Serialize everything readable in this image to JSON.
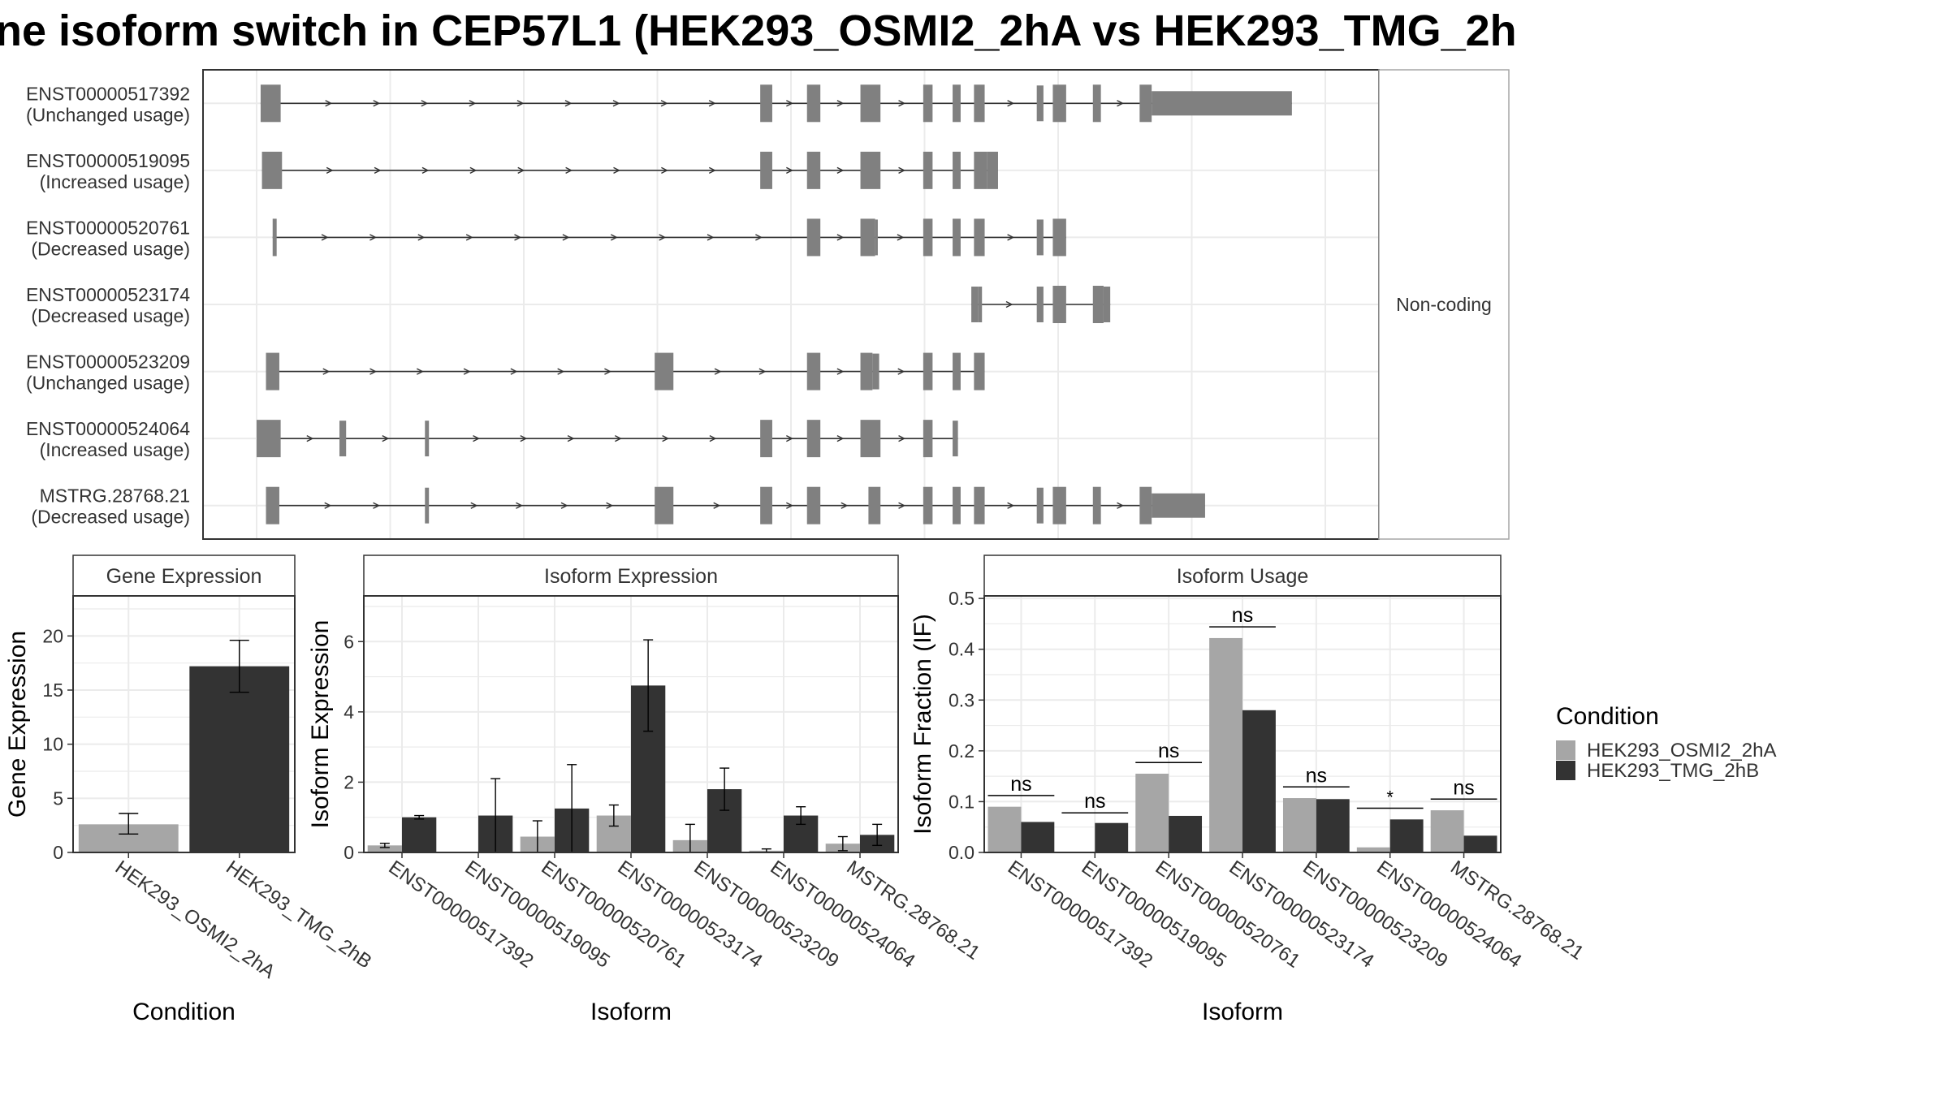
{
  "title": "ne isoform switch in CEP57L1 (HEK293_OSMI2_2hA vs HEK293_TMG_2h",
  "colors": {
    "osmi": "#a6a6a6",
    "tmg": "#333333",
    "exon": "#808080",
    "grid": "#ebebeb",
    "panel_border": "#333333",
    "strip_border": "#a6a6a6",
    "text": "#333333",
    "title": "#000000"
  },
  "chart_data": [
    {
      "type": "gene-structure",
      "strip_label": "Non-coding",
      "transcripts": [
        {
          "id": "ENST00000517392",
          "usage": "(Unchanged usage)",
          "exons": [
            [
              0.3,
              1.8
            ],
            [
              37.7,
              38.6
            ],
            [
              41.2,
              42.2
            ],
            [
              45.2,
              46.7
            ],
            [
              49.9,
              50.6
            ],
            [
              52.1,
              52.7
            ],
            [
              53.7,
              54.5
            ],
            [
              58.4,
              58.9
            ],
            [
              59.6,
              60.6
            ],
            [
              62.6,
              63.2
            ],
            [
              66.1,
              67.0
            ],
            [
              67.0,
              77.5
            ]
          ],
          "thin": [
            [
              66.1,
              67.0
            ]
          ]
        },
        {
          "id": "ENST00000519095",
          "usage": "(Increased usage)",
          "exons": [
            [
              0.4,
              1.9
            ],
            [
              37.7,
              38.6
            ],
            [
              41.2,
              42.2
            ],
            [
              45.2,
              46.7
            ],
            [
              49.9,
              50.6
            ],
            [
              52.1,
              52.7
            ],
            [
              53.7,
              54.7
            ],
            [
              54.7,
              55.5
            ]
          ]
        },
        {
          "id": "ENST00000520761",
          "usage": "(Decreased usage)",
          "exons": [
            [
              1.2,
              1.5
            ],
            [
              41.2,
              42.2
            ],
            [
              45.2,
              46.3
            ],
            [
              46.3,
              46.5
            ],
            [
              49.9,
              50.6
            ],
            [
              52.1,
              52.7
            ],
            [
              53.7,
              54.5
            ],
            [
              58.4,
              58.9
            ],
            [
              59.6,
              60.6
            ]
          ]
        },
        {
          "id": "ENST00000523174",
          "usage": "(Decreased usage)",
          "exons": [
            [
              53.5,
              54.0
            ],
            [
              54.0,
              54.3
            ],
            [
              58.4,
              58.9
            ],
            [
              59.6,
              60.6
            ],
            [
              62.6,
              63.4
            ],
            [
              63.4,
              63.9
            ]
          ]
        },
        {
          "id": "ENST00000523209",
          "usage": "(Unchanged usage)",
          "exons": [
            [
              0.7,
              1.7
            ],
            [
              29.8,
              31.2
            ],
            [
              41.2,
              42.2
            ],
            [
              45.2,
              46.1
            ],
            [
              46.1,
              46.6
            ],
            [
              49.9,
              50.6
            ],
            [
              52.1,
              52.7
            ],
            [
              53.7,
              54.5
            ]
          ]
        },
        {
          "id": "ENST00000524064",
          "usage": "(Increased usage)",
          "exons": [
            [
              0.0,
              1.8
            ],
            [
              6.2,
              6.7
            ],
            [
              12.6,
              12.9
            ],
            [
              37.7,
              38.6
            ],
            [
              41.2,
              42.2
            ],
            [
              45.2,
              46.7
            ],
            [
              49.9,
              50.6
            ],
            [
              52.1,
              52.5
            ]
          ]
        },
        {
          "id": "MSTRG.28768.21",
          "usage": "(Decreased usage)",
          "exons": [
            [
              0.7,
              1.7
            ],
            [
              12.6,
              12.9
            ],
            [
              29.8,
              31.2
            ],
            [
              37.7,
              38.6
            ],
            [
              41.2,
              42.2
            ],
            [
              45.8,
              46.7
            ],
            [
              49.9,
              50.6
            ],
            [
              52.1,
              52.7
            ],
            [
              53.7,
              54.5
            ],
            [
              58.4,
              58.9
            ],
            [
              59.6,
              60.6
            ],
            [
              62.6,
              63.2
            ],
            [
              66.1,
              67.0
            ],
            [
              67.0,
              71.0
            ]
          ]
        }
      ]
    },
    {
      "type": "bar",
      "strip_title": "Gene Expression",
      "xlabel": "Condition",
      "ylabel": "Gene Expression",
      "ylim": [
        0,
        23.7
      ],
      "yticks": [
        0,
        5,
        10,
        15,
        20
      ],
      "categories": [
        "HEK293_OSMI2_2hA",
        "HEK293_TMG_2hB"
      ],
      "values": [
        2.6,
        17.2
      ],
      "err_low": [
        1.7,
        14.8
      ],
      "err_high": [
        3.6,
        19.6
      ]
    },
    {
      "type": "bar",
      "strip_title": "Isoform Expression",
      "xlabel": "Isoform",
      "ylabel": "Isoform Expression",
      "ylim": [
        0,
        7.3
      ],
      "yticks": [
        0,
        2,
        4,
        6
      ],
      "categories": [
        "ENST00000517392",
        "ENST00000519095",
        "ENST00000520761",
        "ENST00000523174",
        "ENST00000523209",
        "ENST00000524064",
        "MSTRG.28768.21"
      ],
      "series": [
        {
          "name": "HEK293_OSMI2_2hA",
          "values": [
            0.2,
            0.0,
            0.45,
            1.05,
            0.35,
            0.05,
            0.25
          ],
          "err_low": [
            0.14,
            0.0,
            0.0,
            0.75,
            0.0,
            0.0,
            0.05
          ],
          "err_high": [
            0.26,
            0.0,
            0.9,
            1.35,
            0.8,
            0.1,
            0.45
          ]
        },
        {
          "name": "HEK293_TMG_2hB",
          "values": [
            1.0,
            1.05,
            1.25,
            4.75,
            1.8,
            1.05,
            0.5
          ],
          "err_low": [
            0.95,
            0.0,
            0.0,
            3.45,
            1.2,
            0.8,
            0.2
          ],
          "err_high": [
            1.05,
            2.1,
            2.5,
            6.05,
            2.4,
            1.3,
            0.8
          ]
        }
      ]
    },
    {
      "type": "bar",
      "strip_title": "Isoform Usage",
      "xlabel": "Isoform",
      "ylabel": "Isoform Fraction (IF)",
      "ylim": [
        0,
        0.505
      ],
      "yticks": [
        0.0,
        0.1,
        0.2,
        0.3,
        0.4,
        0.5
      ],
      "ytick_labels": [
        "0.0",
        "0.1",
        "0.2",
        "0.3",
        "0.4",
        "0.5"
      ],
      "categories": [
        "ENST00000517392",
        "ENST00000519095",
        "ENST00000520761",
        "ENST00000523174",
        "ENST00000523209",
        "ENST00000524064",
        "MSTRG.28768.21"
      ],
      "series": [
        {
          "name": "HEK293_OSMI2_2hA",
          "values": [
            0.09,
            0.0,
            0.155,
            0.422,
            0.107,
            0.01,
            0.083
          ]
        },
        {
          "name": "HEK293_TMG_2hB",
          "values": [
            0.06,
            0.058,
            0.072,
            0.28,
            0.105,
            0.065,
            0.033
          ]
        }
      ],
      "significance": [
        {
          "label": "ns",
          "y": 0.112
        },
        {
          "label": "ns",
          "y": 0.078
        },
        {
          "label": "ns",
          "y": 0.177
        },
        {
          "label": "ns",
          "y": 0.444
        },
        {
          "label": "ns",
          "y": 0.129
        },
        {
          "label": "*",
          "y": 0.087
        },
        {
          "label": "ns",
          "y": 0.105
        }
      ]
    }
  ],
  "legend": {
    "title": "Condition",
    "entries": [
      "HEK293_OSMI2_2hA",
      "HEK293_TMG_2hB"
    ]
  }
}
